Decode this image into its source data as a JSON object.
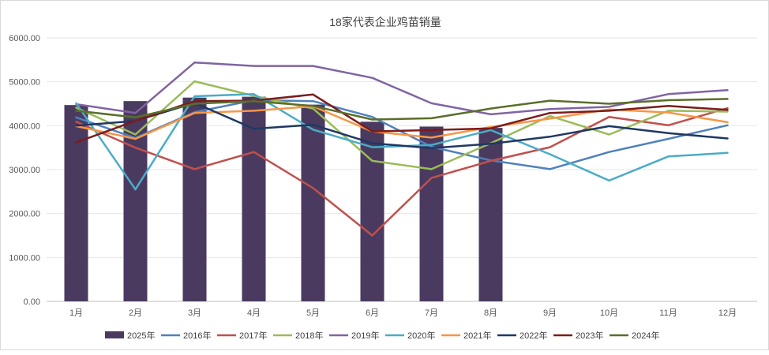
{
  "chart_data": {
    "type": "bar+line",
    "title": "18家代表企业鸡苗销量",
    "categories": [
      "1月",
      "2月",
      "3月",
      "4月",
      "5月",
      "6月",
      "7月",
      "8月",
      "9月",
      "10月",
      "11月",
      "12月"
    ],
    "y_ticks": [
      "0.00",
      "1000.00",
      "2000.00",
      "3000.00",
      "4000.00",
      "5000.00",
      "6000.00"
    ],
    "ylim": [
      0,
      6000
    ],
    "grid": true,
    "legend_position": "bottom",
    "bar_series": {
      "name": "2025年",
      "color": "#4a3a60",
      "values": [
        4470,
        4560,
        4640,
        4660,
        4480,
        4090,
        3980,
        3950
      ]
    },
    "line_series": [
      {
        "name": "2016年",
        "color": "#4f81bd",
        "values": [
          4190,
          3720,
          4310,
          4580,
          4560,
          4200,
          3520,
          3210,
          3010,
          3400,
          3700,
          4010
        ]
      },
      {
        "name": "2017年",
        "color": "#c0504d",
        "values": [
          4090,
          3500,
          3010,
          3400,
          2580,
          1500,
          2810,
          3200,
          3510,
          4200,
          4010,
          4400
        ]
      },
      {
        "name": "2018年",
        "color": "#9bbb59",
        "values": [
          4410,
          3800,
          5010,
          4680,
          4390,
          3200,
          3010,
          3600,
          4220,
          3800,
          4340,
          4320
        ]
      },
      {
        "name": "2019年",
        "color": "#8064a2",
        "values": [
          4490,
          4290,
          5440,
          5360,
          5360,
          5090,
          4510,
          4260,
          4380,
          4430,
          4720,
          4810
        ]
      },
      {
        "name": "2020年",
        "color": "#4bacc6",
        "values": [
          4510,
          2550,
          4670,
          4720,
          3910,
          3510,
          3560,
          3900,
          3350,
          2750,
          3300,
          3380
        ]
      },
      {
        "name": "2021年",
        "color": "#f79646",
        "values": [
          3990,
          3700,
          4290,
          4340,
          4440,
          3870,
          3730,
          3970,
          4160,
          4370,
          4300,
          4080
        ]
      },
      {
        "name": "2022年",
        "color": "#1f3864",
        "values": [
          4000,
          4110,
          4520,
          3930,
          4020,
          3600,
          3490,
          3590,
          3750,
          3990,
          3830,
          3710
        ]
      },
      {
        "name": "2023年",
        "color": "#7b1c1c",
        "values": [
          3620,
          4110,
          4560,
          4570,
          4710,
          3870,
          3900,
          3940,
          4290,
          4340,
          4450,
          4360
        ]
      },
      {
        "name": "2024年",
        "color": "#5a6e2a",
        "values": [
          4340,
          4190,
          4500,
          4560,
          4450,
          4140,
          4170,
          4390,
          4570,
          4500,
          4580,
          4610
        ]
      }
    ]
  }
}
